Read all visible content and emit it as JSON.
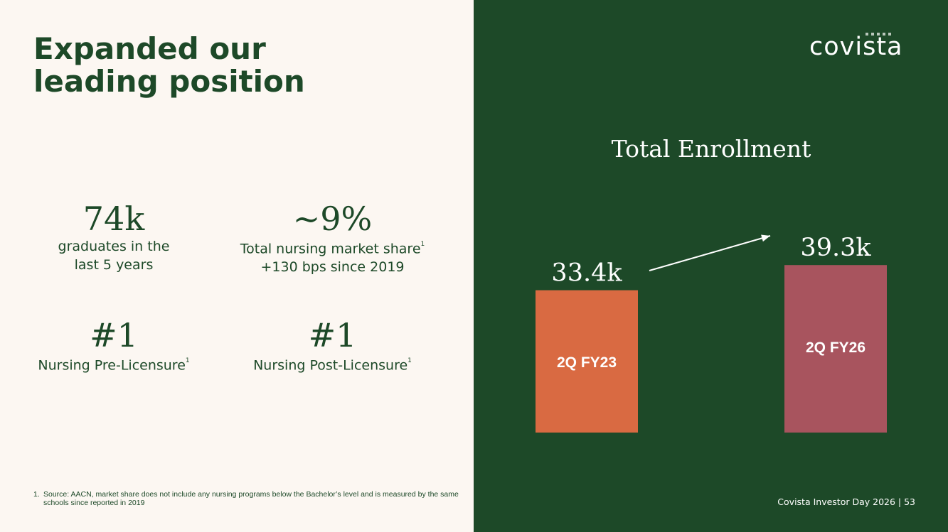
{
  "title": {
    "line1": "Expanded our",
    "line2": "leading position"
  },
  "stats": [
    {
      "value": "74k",
      "line1": "graduates in the",
      "line2": "last 5 years"
    },
    {
      "value": "~9%",
      "line1": "Total nursing market share",
      "sup1": "1",
      "line2": "+130 bps since 2019"
    },
    {
      "value": "#1",
      "line1": "Nursing Pre-Licensure",
      "sup1": "1"
    },
    {
      "value": "#1",
      "line1": "Nursing Post-Licensure",
      "sup1": "1"
    }
  ],
  "footnote": {
    "num": "1.",
    "text": "Source: AACN, market share does not include any nursing programs below the Bachelor’s level and is measured by the same schools since reported in 2019"
  },
  "logo": {
    "text": "covista"
  },
  "footer": {
    "text": "Covista Investor Day 2026 |  53"
  },
  "colors": {
    "background_left": "#fcf7f2",
    "background_right": "#1d4928",
    "accent_green": "#1d4928",
    "bar1": "#d96a42",
    "bar2": "#a8545e"
  },
  "chart_data": {
    "type": "bar",
    "title": "Total Enrollment",
    "categories": [
      "2Q FY23",
      "2Q FY26"
    ],
    "values": [
      33.4,
      39.3
    ],
    "value_labels": [
      "33.4k",
      "39.3k"
    ],
    "colors": [
      "#d96a42",
      "#a8545e"
    ],
    "grid": false,
    "legend": "none",
    "annotation": "arrow from first bar label to second bar label"
  }
}
